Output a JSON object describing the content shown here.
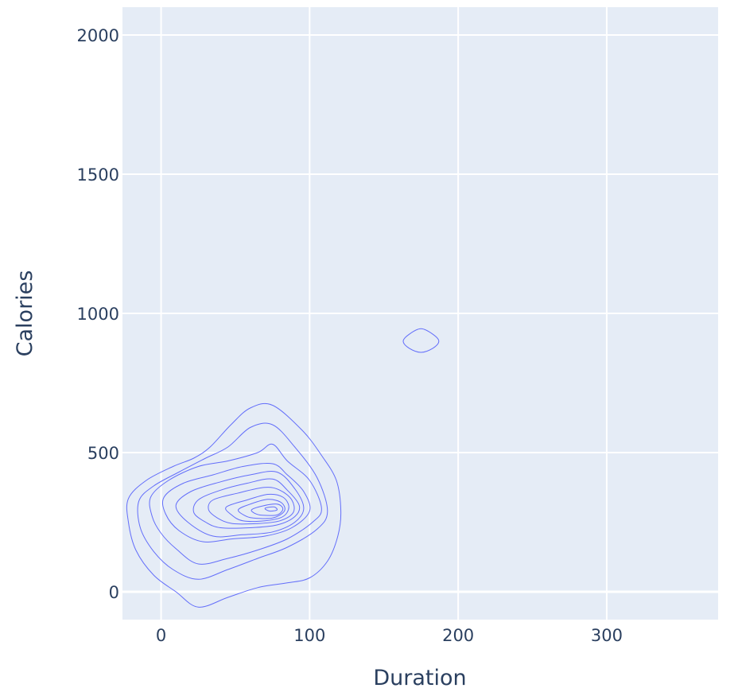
{
  "chart_data": {
    "type": "contour",
    "subtype": "2d-density-contour",
    "title": "",
    "xlabel": "Duration",
    "ylabel": "Calories",
    "xlim": [
      -26,
      375
    ],
    "ylim": [
      -100,
      2100
    ],
    "x_ticks": [
      0,
      100,
      200,
      300
    ],
    "y_ticks": [
      0,
      500,
      1000,
      1500,
      2000
    ],
    "grid": true,
    "legend": "none",
    "colors": {
      "plot_background": "#e5ecf6",
      "grid": "#ffffff",
      "contour_line": "#636efa",
      "text": "#2a3f5f"
    },
    "series": [
      {
        "contours": [
          [
            [
              25,
              -55
            ],
            [
              45,
              -20
            ],
            [
              65,
              15
            ],
            [
              85,
              32
            ],
            [
              100,
              50
            ],
            [
              112,
              110
            ],
            [
              119,
              200
            ],
            [
              121,
              290
            ],
            [
              118,
              400
            ],
            [
              108,
              490
            ],
            [
              95,
              580
            ],
            [
              75,
              670
            ],
            [
              60,
              660
            ],
            [
              47,
              600
            ],
            [
              33,
              520
            ],
            [
              22,
              480
            ],
            [
              8,
              450
            ],
            [
              -10,
              400
            ],
            [
              -22,
              335
            ],
            [
              -22,
              250
            ],
            [
              -17,
              150
            ],
            [
              -5,
              60
            ],
            [
              10,
              0
            ]
          ],
          [
            [
              25,
              45
            ],
            [
              45,
              80
            ],
            [
              65,
              120
            ],
            [
              85,
              160
            ],
            [
              105,
              225
            ],
            [
              112,
              290
            ],
            [
              105,
              410
            ],
            [
              90,
              520
            ],
            [
              75,
              600
            ],
            [
              60,
              590
            ],
            [
              45,
              520
            ],
            [
              30,
              480
            ],
            [
              12,
              430
            ],
            [
              -5,
              380
            ],
            [
              -15,
              325
            ],
            [
              -14,
              230
            ],
            [
              -5,
              145
            ],
            [
              8,
              80
            ]
          ],
          [
            [
              25,
              100
            ],
            [
              45,
              120
            ],
            [
              65,
              150
            ],
            [
              85,
              190
            ],
            [
              102,
              250
            ],
            [
              108,
              300
            ],
            [
              100,
              400
            ],
            [
              85,
              470
            ],
            [
              75,
              530
            ],
            [
              65,
              500
            ],
            [
              45,
              470
            ],
            [
              25,
              450
            ],
            [
              5,
              400
            ],
            [
              -7,
              340
            ],
            [
              -6,
              270
            ],
            [
              0,
              210
            ],
            [
              10,
              155
            ]
          ],
          [
            [
              28,
              180
            ],
            [
              48,
              190
            ],
            [
              70,
              200
            ],
            [
              88,
              230
            ],
            [
              100,
              290
            ],
            [
              96,
              360
            ],
            [
              85,
              420
            ],
            [
              75,
              460
            ],
            [
              55,
              450
            ],
            [
              35,
              420
            ],
            [
              15,
              390
            ],
            [
              2,
              340
            ],
            [
              3,
              280
            ],
            [
              12,
              220
            ]
          ],
          [
            [
              35,
              200
            ],
            [
              55,
              205
            ],
            [
              75,
              215
            ],
            [
              90,
              250
            ],
            [
              96,
              300
            ],
            [
              90,
              370
            ],
            [
              78,
              430
            ],
            [
              60,
              420
            ],
            [
              40,
              395
            ],
            [
              20,
              360
            ],
            [
              10,
              310
            ],
            [
              18,
              250
            ]
          ],
          [
            [
              40,
              230
            ],
            [
              60,
              230
            ],
            [
              78,
              240
            ],
            [
              90,
              270
            ],
            [
              93,
              310
            ],
            [
              85,
              365
            ],
            [
              75,
              405
            ],
            [
              58,
              390
            ],
            [
              40,
              365
            ],
            [
              25,
              330
            ],
            [
              22,
              285
            ],
            [
              30,
              250
            ]
          ],
          [
            [
              48,
              245
            ],
            [
              65,
              245
            ],
            [
              80,
              255
            ],
            [
              89,
              285
            ],
            [
              88,
              330
            ],
            [
              80,
              365
            ],
            [
              70,
              375
            ],
            [
              52,
              355
            ],
            [
              35,
              330
            ],
            [
              32,
              295
            ],
            [
              38,
              265
            ]
          ],
          [
            [
              55,
              255
            ],
            [
              70,
              255
            ],
            [
              82,
              270
            ],
            [
              86,
              305
            ],
            [
              82,
              340
            ],
            [
              72,
              350
            ],
            [
              58,
              330
            ],
            [
              44,
              305
            ],
            [
              47,
              278
            ]
          ],
          [
            [
              62,
              265
            ],
            [
              75,
              265
            ],
            [
              83,
              290
            ],
            [
              81,
              320
            ],
            [
              72,
              332
            ],
            [
              60,
              315
            ],
            [
              52,
              295
            ],
            [
              56,
              275
            ]
          ],
          [
            [
              68,
              275
            ],
            [
              78,
              276
            ],
            [
              82,
              298
            ],
            [
              78,
              315
            ],
            [
              68,
              308
            ],
            [
              61,
              295
            ],
            [
              63,
              282
            ]
          ],
          [
            [
              73,
              290
            ],
            [
              78,
              294
            ],
            [
              76,
              305
            ],
            [
              70,
              300
            ]
          ],
          [
            [
              175,
              860
            ],
            [
              183,
              875
            ],
            [
              187,
              900
            ],
            [
              183,
              925
            ],
            [
              175,
              945
            ],
            [
              167,
              925
            ],
            [
              163,
              900
            ],
            [
              167,
              875
            ]
          ]
        ]
      }
    ]
  }
}
